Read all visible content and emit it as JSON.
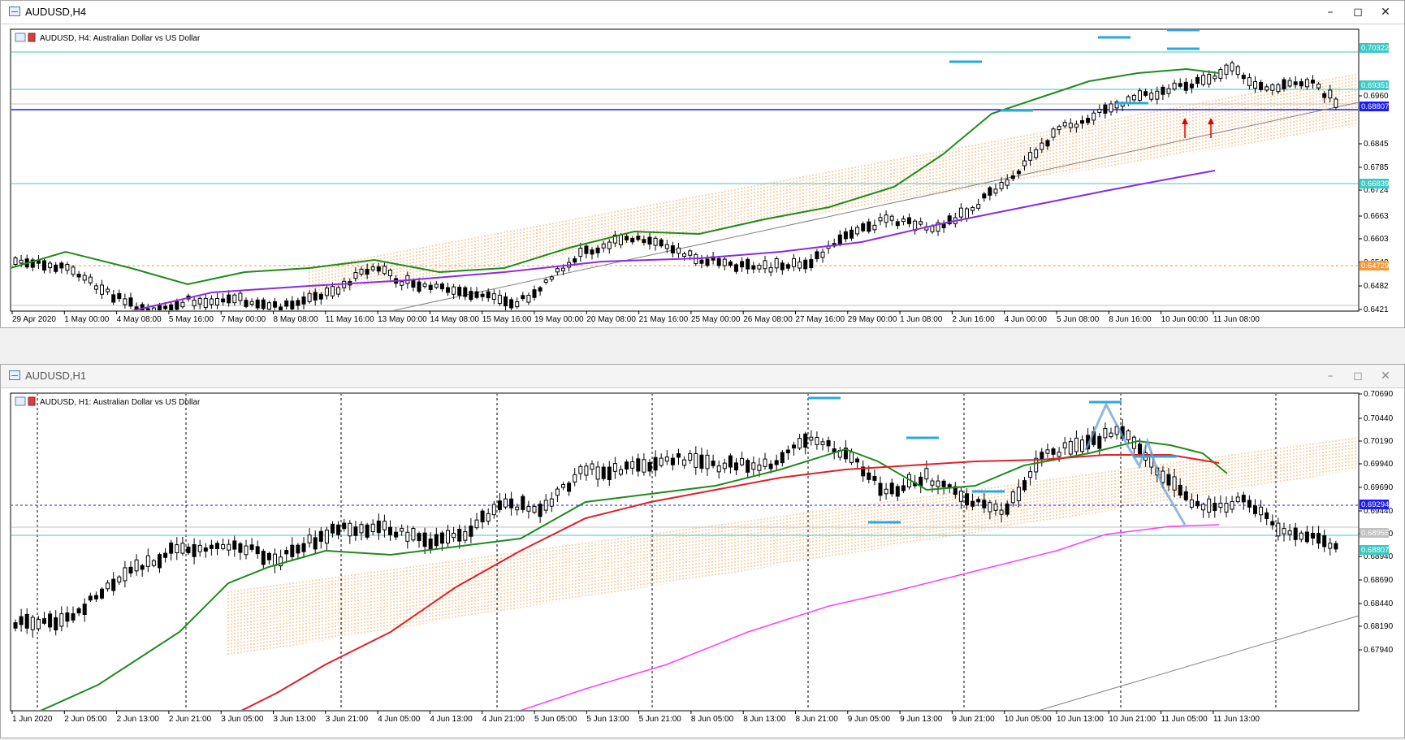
{
  "window_top": {
    "title": "AUDUSD,H4",
    "legend": "AUDUSD, H4:  Australian Dollar vs US Dollar",
    "price_labels": [
      "0.6960",
      "0.6845",
      "0.6785",
      "0.6724",
      "0.6663",
      "0.6603",
      "0.6543",
      "0.6482",
      "0.6421"
    ],
    "price_tags": [
      {
        "text": "0.70322",
        "color": "#3cc9c6"
      },
      {
        "text": "0.69351",
        "color": "#3cc9c6"
      },
      {
        "text": "0.68807",
        "color": "#1a1aff"
      },
      {
        "text": "0.66839",
        "color": "#3cc9c6"
      },
      {
        "text": "0.64729",
        "color": "#f39a3c"
      }
    ],
    "time_labels": [
      "29 Apr 2020",
      "1 May 00:00",
      "4 May 08:00",
      "5 May 16:00",
      "7 May 00:00",
      "8 May 08:00",
      "11 May 16:00",
      "13 May 00:00",
      "14 May 08:00",
      "15 May 16:00",
      "19 May 00:00",
      "20 May 08:00",
      "21 May 16:00",
      "25 May 00:00",
      "26 May 08:00",
      "27 May 16:00",
      "29 May 00:00",
      "1 Jun 08:00",
      "2 Jun 16:00",
      "4 Jun 00:00",
      "5 Jun 08:00",
      "8 Jun 16:00",
      "10 Jun 00:00",
      "11 Jun 08:00"
    ]
  },
  "window_bottom": {
    "title": "AUDUSD,H1",
    "legend": "AUDUSD, H1:  Australian Dollar vs US Dollar",
    "price_labels": [
      "0.70690",
      "0.70440",
      "0.70190",
      "0.69940",
      "0.69690",
      "0.69440",
      "0.69190",
      "0.68940",
      "0.68690",
      "0.68440",
      "0.68190",
      "0.67940"
    ],
    "price_tags": [
      {
        "text": "0.69294",
        "color": "#1a1aff"
      },
      {
        "text": "0.68955",
        "color": "#c0c0c0"
      },
      {
        "text": "0.68807",
        "color": "#3cc9c6"
      }
    ],
    "time_labels": [
      "1 Jun 2020",
      "2 Jun 05:00",
      "2 Jun 13:00",
      "2 Jun 21:00",
      "3 Jun 05:00",
      "3 Jun 13:00",
      "3 Jun 21:00",
      "4 Jun 05:00",
      "4 Jun 13:00",
      "4 Jun 21:00",
      "5 Jun 05:00",
      "5 Jun 13:00",
      "5 Jun 21:00",
      "8 Jun 05:00",
      "8 Jun 13:00",
      "8 Jun 21:00",
      "9 Jun 05:00",
      "9 Jun 13:00",
      "9 Jun 21:00",
      "10 Jun 05:00",
      "10 Jun 13:00",
      "10 Jun 21:00",
      "11 Jun 05:00",
      "11 Jun 13:00"
    ]
  },
  "icons": {
    "minimize": "minimize-icon",
    "maximize": "maximize-icon",
    "close": "close-icon",
    "chart": "chart-window-icon"
  },
  "colors": {
    "candle_bull": "#ffffff",
    "candle_bear": "#000000",
    "ma_green": "#1e8a1e",
    "ma_purple": "#8a2be2",
    "ma_red": "#e0202a",
    "ma_magenta": "#ff3cff",
    "cloud": "#f39a3c",
    "level": "#3cc9c6",
    "support": "#1a1aff",
    "marker": "#29a8e0"
  }
}
